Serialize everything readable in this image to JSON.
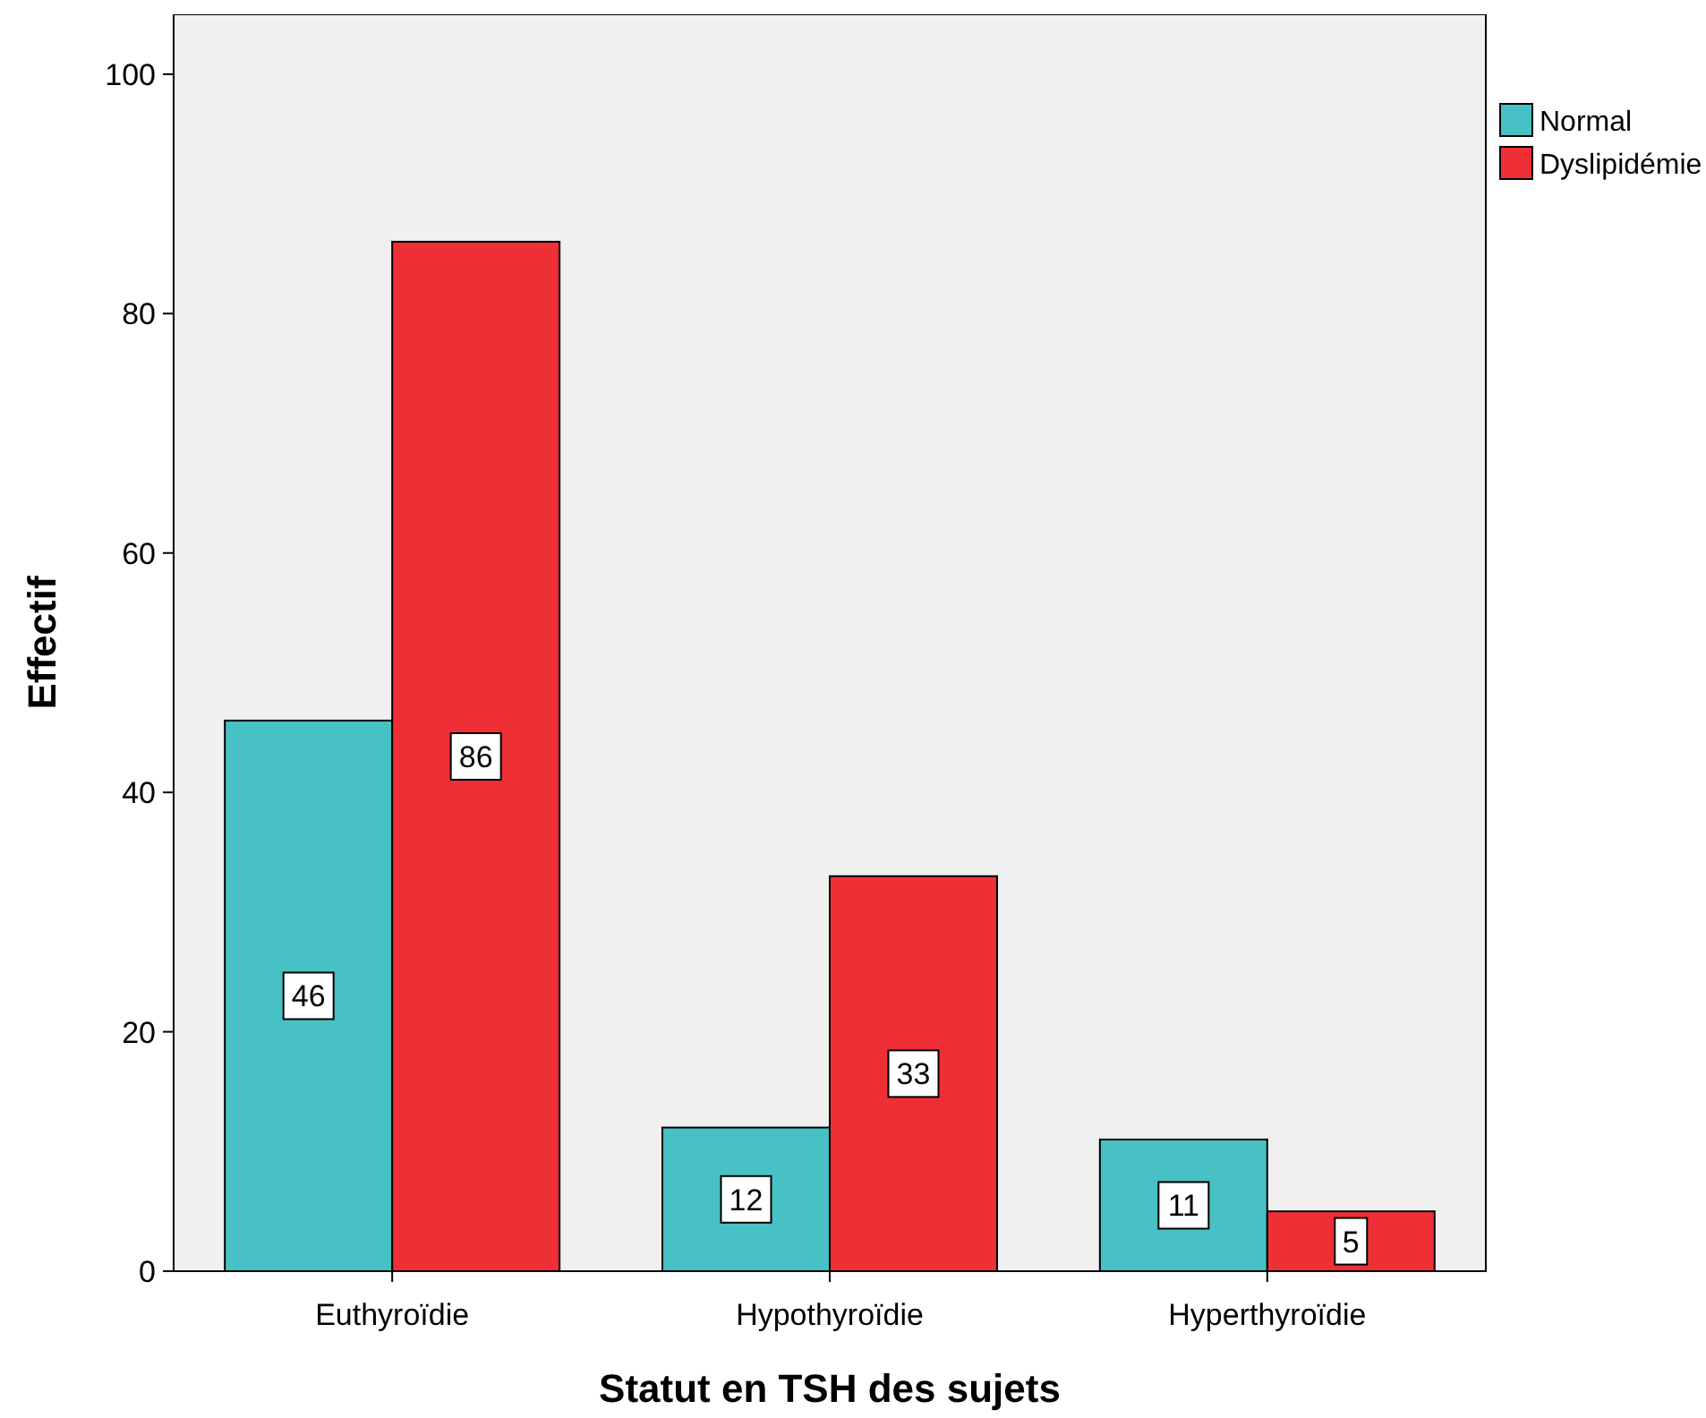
{
  "chart_data": {
    "type": "bar",
    "xlabel": "Statut en TSH des sujets",
    "ylabel": "Effectif",
    "categories": [
      "Euthyroïdie",
      "Hypothyroïdie",
      "Hyperthyroïdie"
    ],
    "series": [
      {
        "name": "Normal",
        "color": "#47c1c3",
        "values": [
          46,
          12,
          11
        ]
      },
      {
        "name": "Dyslipidémie",
        "color": "#ef2f36",
        "values": [
          86,
          33,
          5
        ]
      }
    ],
    "ylim": [
      0,
      105
    ],
    "yticks": [
      0,
      20,
      40,
      60,
      80,
      100
    ],
    "grid": false,
    "legend": "top right",
    "data_labels": true
  }
}
